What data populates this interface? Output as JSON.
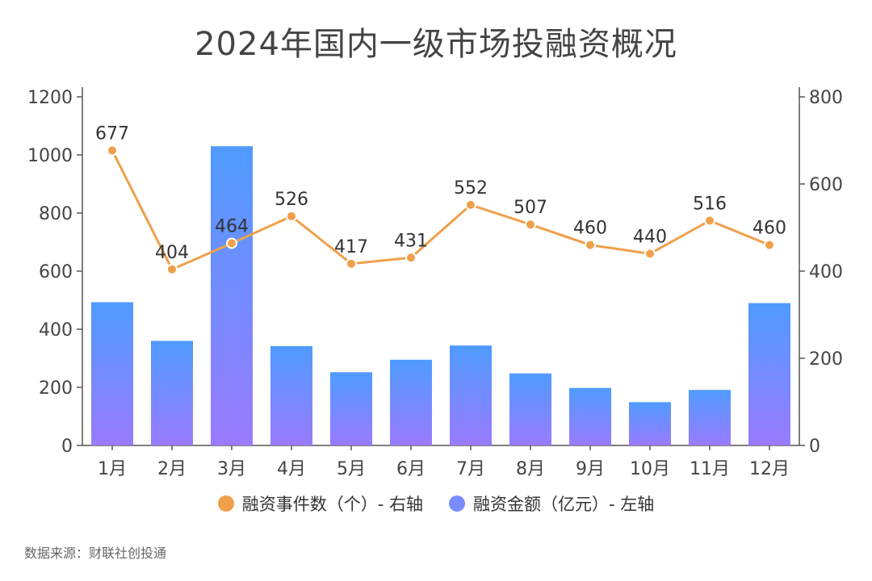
{
  "title": "2024年国内一级市场投融资概况",
  "source": "数据来源：财联社创投通",
  "colors": {
    "line": "#f0a04b",
    "bar_top": "#4f9bff",
    "bar_bottom": "#9a7bff"
  },
  "chart_data": {
    "type": "bar+line",
    "categories": [
      "1月",
      "2月",
      "3月",
      "4月",
      "5月",
      "6月",
      "7月",
      "8月",
      "9月",
      "10月",
      "11月",
      "12月"
    ],
    "series": [
      {
        "name": "融资金额（亿元）- 左轴",
        "type": "bar",
        "axis": "left",
        "values": [
          493,
          360,
          1030,
          342,
          252,
          295,
          344,
          248,
          198,
          149,
          191,
          490
        ]
      },
      {
        "name": "融资事件数（个）- 右轴",
        "type": "line",
        "axis": "right",
        "values": [
          677,
          404,
          464,
          526,
          417,
          431,
          552,
          507,
          460,
          440,
          516,
          460
        ]
      }
    ],
    "left_axis": {
      "ylim": [
        0,
        1200
      ],
      "ticks": [
        0,
        200,
        400,
        600,
        800,
        1000,
        1200
      ]
    },
    "right_axis": {
      "ylim": [
        0,
        800
      ],
      "ticks": [
        0,
        200,
        400,
        600,
        800
      ]
    },
    "legend": [
      {
        "label": "融资事件数（个）- 右轴",
        "color": "#f0a04b"
      },
      {
        "label": "融资金额（亿元）- 左轴",
        "color": "#7a8cff"
      }
    ],
    "legend_position": "bottom",
    "grid": false
  }
}
